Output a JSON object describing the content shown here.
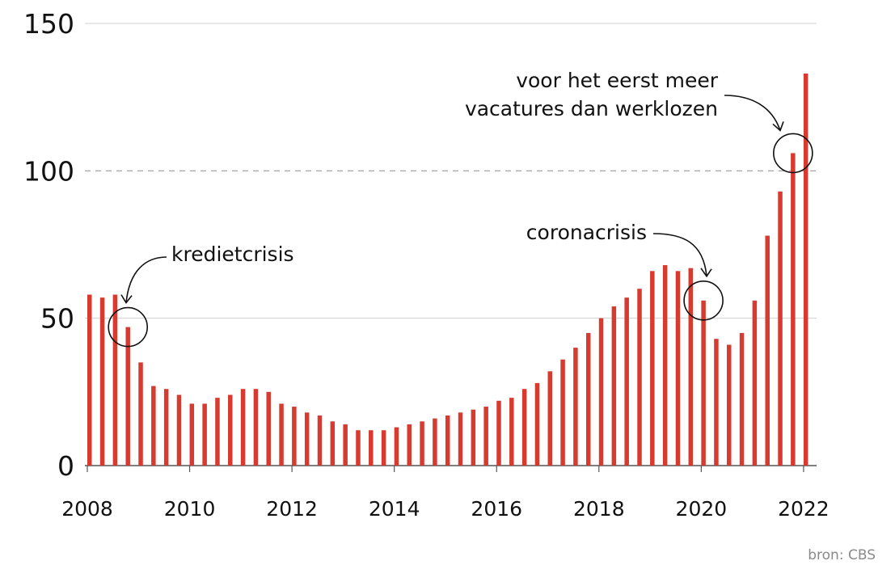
{
  "chart_data": {
    "type": "bar",
    "title": "",
    "xlabel": "",
    "ylabel": "",
    "ylim": [
      0,
      150
    ],
    "yticks": [
      0,
      50,
      100,
      150
    ],
    "reference_line": 100,
    "x_tick_labels": [
      "2008",
      "2010",
      "2012",
      "2014",
      "2016",
      "2018",
      "2020",
      "2022"
    ],
    "bar_color": "#d73a2e",
    "x_start": 2008.0,
    "x_step": 0.25,
    "values": [
      58,
      57,
      58,
      47,
      35,
      27,
      26,
      24,
      21,
      21,
      23,
      24,
      26,
      26,
      25,
      21,
      20,
      18,
      17,
      15,
      14,
      12,
      12,
      12,
      13,
      14,
      15,
      16,
      17,
      18,
      19,
      20,
      22,
      23,
      26,
      28,
      32,
      36,
      40,
      45,
      50,
      54,
      57,
      60,
      66,
      68,
      66,
      67,
      56,
      43,
      41,
      45,
      56,
      78,
      93,
      106,
      133
    ],
    "annotations": [
      {
        "lines": [
          "kredietcrisis"
        ],
        "bar_index": 3
      },
      {
        "lines": [
          "coronacrisis"
        ],
        "bar_index": 48
      },
      {
        "lines": [
          "voor het eerst meer",
          "vacatures dan werklozen"
        ],
        "bar_index": 55
      }
    ]
  },
  "source": "bron: CBS"
}
